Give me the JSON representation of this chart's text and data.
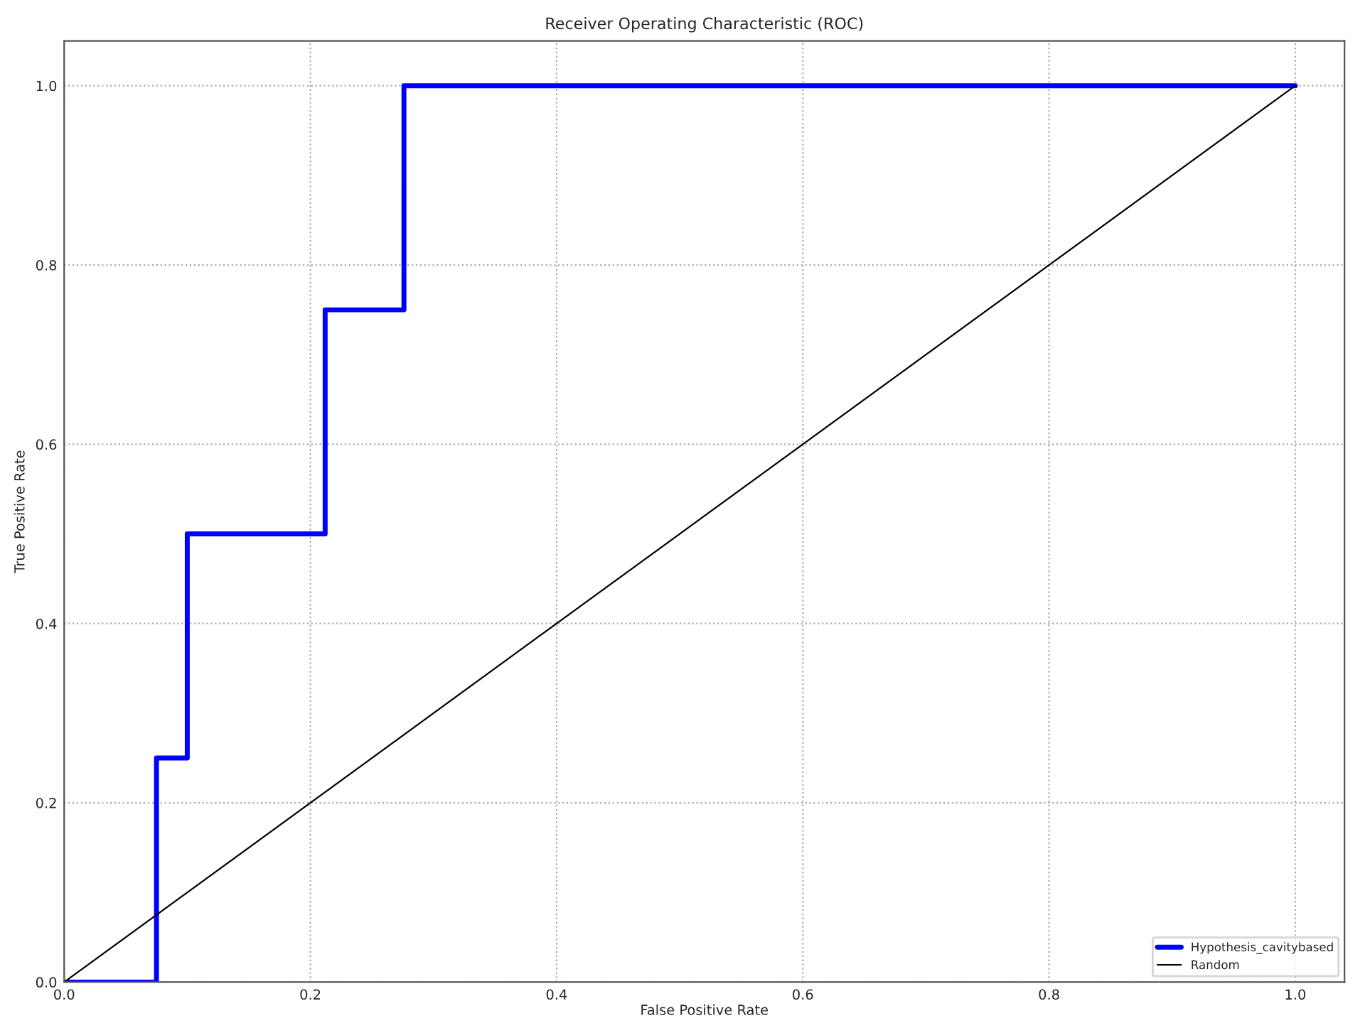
{
  "chart_data": {
    "type": "line",
    "title": "Receiver Operating Characteristic (ROC)",
    "xlabel": "False Positive Rate",
    "ylabel": "True Positive Rate",
    "series": [
      {
        "name": "Hypothesis_cavitybased",
        "color": "#0000ff",
        "x": [
          0,
          0.075,
          0.075,
          0.1,
          0.1,
          0.212,
          0.212,
          0.276,
          0.276,
          1.0
        ],
        "values": [
          0,
          0,
          0.25,
          0.25,
          0.5,
          0.5,
          0.75,
          0.75,
          1.0,
          1.0
        ]
      },
      {
        "name": "Random",
        "color": "#000000",
        "x": [
          0,
          1.0
        ],
        "values": [
          0,
          1.0
        ]
      }
    ],
    "xlim": [
      0,
      1.04
    ],
    "ylim": [
      0,
      1.05
    ],
    "xticks": [
      {
        "value": 0,
        "label": "0.0"
      },
      0.2,
      0.4,
      0.6,
      0.8,
      {
        "value": 1,
        "label": "1.0"
      }
    ],
    "yticks": [
      {
        "value": 0,
        "label": "0.0"
      },
      0.2,
      0.4,
      0.6,
      0.8,
      {
        "value": 1,
        "label": "1.0"
      }
    ],
    "grid": true,
    "legend": "bottom right"
  }
}
